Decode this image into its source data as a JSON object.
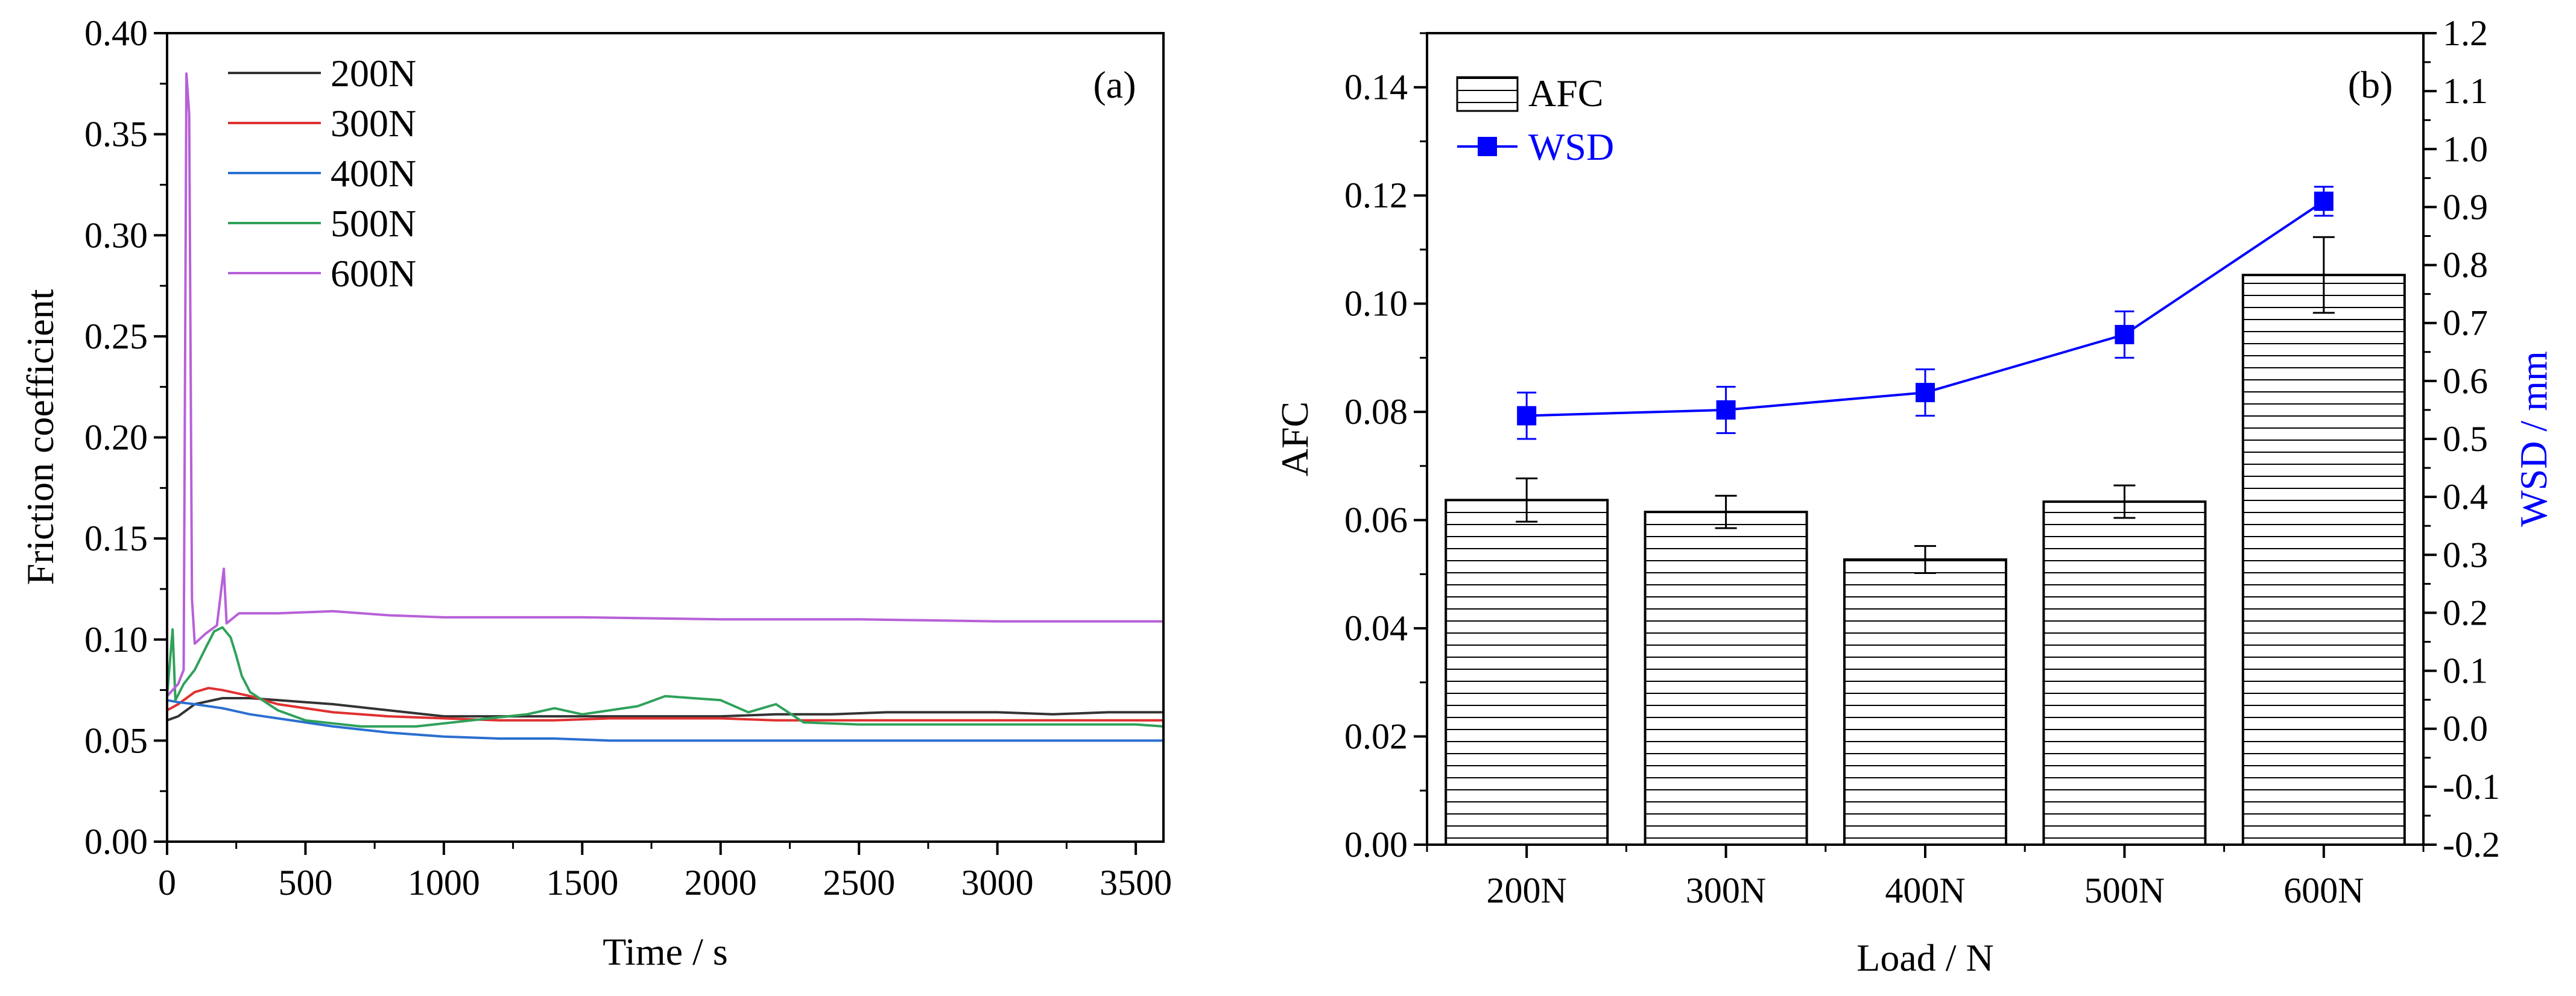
{
  "chart_data": [
    {
      "panel": "(a)",
      "type": "line",
      "xlabel": "Time / s",
      "ylabel": "Friction coefficient",
      "xlim": [
        0,
        3600
      ],
      "ylim": [
        0,
        0.4
      ],
      "xticks": [
        0,
        500,
        1000,
        1500,
        2000,
        2500,
        3000,
        3500
      ],
      "xtick_labels": [
        "0",
        "500",
        "1000",
        "1500",
        "2000",
        "2500",
        "3000",
        "3500"
      ],
      "yticks": [
        0,
        0.05,
        0.1,
        0.15,
        0.2,
        0.25,
        0.3,
        0.35,
        0.4
      ],
      "ytick_labels": [
        "0.00",
        "0.05",
        "0.10",
        "0.15",
        "0.20",
        "0.25",
        "0.30",
        "0.35",
        "0.40"
      ],
      "legend_position": "top-left",
      "series": [
        {
          "name": "200N",
          "color": "#333333",
          "points": [
            [
              0,
              0.06
            ],
            [
              40,
              0.062
            ],
            [
              100,
              0.068
            ],
            [
              200,
              0.071
            ],
            [
              300,
              0.071
            ],
            [
              400,
              0.07
            ],
            [
              600,
              0.068
            ],
            [
              800,
              0.065
            ],
            [
              1000,
              0.062
            ],
            [
              1200,
              0.062
            ],
            [
              1400,
              0.062
            ],
            [
              1600,
              0.062
            ],
            [
              1800,
              0.062
            ],
            [
              2000,
              0.062
            ],
            [
              2200,
              0.063
            ],
            [
              2400,
              0.063
            ],
            [
              2600,
              0.064
            ],
            [
              2800,
              0.064
            ],
            [
              3000,
              0.064
            ],
            [
              3200,
              0.063
            ],
            [
              3400,
              0.064
            ],
            [
              3600,
              0.064
            ]
          ]
        },
        {
          "name": "300N",
          "color": "#e03030",
          "points": [
            [
              0,
              0.065
            ],
            [
              40,
              0.068
            ],
            [
              100,
              0.074
            ],
            [
              150,
              0.076
            ],
            [
              200,
              0.075
            ],
            [
              300,
              0.072
            ],
            [
              400,
              0.068
            ],
            [
              600,
              0.064
            ],
            [
              800,
              0.062
            ],
            [
              1000,
              0.061
            ],
            [
              1200,
              0.06
            ],
            [
              1400,
              0.06
            ],
            [
              1600,
              0.061
            ],
            [
              1800,
              0.061
            ],
            [
              2000,
              0.061
            ],
            [
              2200,
              0.06
            ],
            [
              2400,
              0.06
            ],
            [
              2600,
              0.06
            ],
            [
              2800,
              0.06
            ],
            [
              3000,
              0.06
            ],
            [
              3200,
              0.06
            ],
            [
              3400,
              0.06
            ],
            [
              3600,
              0.06
            ]
          ]
        },
        {
          "name": "400N",
          "color": "#2a6fd0",
          "points": [
            [
              0,
              0.07
            ],
            [
              40,
              0.069
            ],
            [
              100,
              0.068
            ],
            [
              200,
              0.066
            ],
            [
              300,
              0.063
            ],
            [
              400,
              0.061
            ],
            [
              600,
              0.057
            ],
            [
              800,
              0.054
            ],
            [
              1000,
              0.052
            ],
            [
              1200,
              0.051
            ],
            [
              1400,
              0.051
            ],
            [
              1600,
              0.05
            ],
            [
              1800,
              0.05
            ],
            [
              2000,
              0.05
            ],
            [
              2200,
              0.05
            ],
            [
              2400,
              0.05
            ],
            [
              2600,
              0.05
            ],
            [
              2800,
              0.05
            ],
            [
              3000,
              0.05
            ],
            [
              3200,
              0.05
            ],
            [
              3400,
              0.05
            ],
            [
              3600,
              0.05
            ]
          ]
        },
        {
          "name": "500N",
          "color": "#2fa15a",
          "points": [
            [
              0,
              0.072
            ],
            [
              20,
              0.105
            ],
            [
              30,
              0.07
            ],
            [
              60,
              0.078
            ],
            [
              100,
              0.085
            ],
            [
              140,
              0.096
            ],
            [
              170,
              0.104
            ],
            [
              200,
              0.106
            ],
            [
              230,
              0.101
            ],
            [
              250,
              0.092
            ],
            [
              270,
              0.082
            ],
            [
              300,
              0.074
            ],
            [
              400,
              0.065
            ],
            [
              500,
              0.06
            ],
            [
              700,
              0.057
            ],
            [
              900,
              0.057
            ],
            [
              1100,
              0.06
            ],
            [
              1300,
              0.063
            ],
            [
              1400,
              0.066
            ],
            [
              1500,
              0.063
            ],
            [
              1600,
              0.065
            ],
            [
              1700,
              0.067
            ],
            [
              1800,
              0.072
            ],
            [
              1900,
              0.071
            ],
            [
              2000,
              0.07
            ],
            [
              2100,
              0.064
            ],
            [
              2200,
              0.068
            ],
            [
              2300,
              0.059
            ],
            [
              2500,
              0.058
            ],
            [
              2700,
              0.058
            ],
            [
              2900,
              0.058
            ],
            [
              3100,
              0.058
            ],
            [
              3300,
              0.058
            ],
            [
              3500,
              0.058
            ],
            [
              3600,
              0.057
            ]
          ]
        },
        {
          "name": "600N",
          "color": "#b860d8",
          "points": [
            [
              0,
              0.072
            ],
            [
              40,
              0.078
            ],
            [
              60,
              0.085
            ],
            [
              70,
              0.38
            ],
            [
              80,
              0.36
            ],
            [
              90,
              0.12
            ],
            [
              100,
              0.098
            ],
            [
              140,
              0.103
            ],
            [
              180,
              0.107
            ],
            [
              205,
              0.135
            ],
            [
              215,
              0.108
            ],
            [
              260,
              0.113
            ],
            [
              400,
              0.113
            ],
            [
              600,
              0.114
            ],
            [
              800,
              0.112
            ],
            [
              1000,
              0.111
            ],
            [
              1500,
              0.111
            ],
            [
              2000,
              0.11
            ],
            [
              2500,
              0.11
            ],
            [
              3000,
              0.109
            ],
            [
              3600,
              0.109
            ]
          ]
        }
      ]
    },
    {
      "panel": "(b)",
      "type": "bar",
      "categories": [
        "200N",
        "300N",
        "400N",
        "500N",
        "600N"
      ],
      "xlabel": "Load / N",
      "ylabel": "AFC",
      "ylim": [
        0,
        0.15
      ],
      "yticks": [
        0,
        0.02,
        0.04,
        0.06,
        0.08,
        0.1,
        0.12,
        0.14
      ],
      "ytick_labels": [
        "0.00",
        "0.02",
        "0.04",
        "0.06",
        "0.08",
        "0.10",
        "0.12",
        "0.14"
      ],
      "y2label": "WSD / mm",
      "y2lim": [
        -0.2,
        1.2
      ],
      "y2ticks": [
        -0.2,
        -0.1,
        0,
        0.1,
        0.2,
        0.3,
        0.4,
        0.5,
        0.6,
        0.7,
        0.8,
        0.9,
        1.0,
        1.1,
        1.2
      ],
      "y2tick_labels": [
        "-0.2",
        "-0.1",
        "0.0",
        "0.1",
        "0.2",
        "0.3",
        "0.4",
        "0.5",
        "0.6",
        "0.7",
        "0.8",
        "0.9",
        "1.0",
        "1.1",
        "1.2"
      ],
      "legend_position": "top-left",
      "series": [
        {
          "name": "AFC",
          "axis": "left",
          "kind": "bar",
          "color": "#000000",
          "values": [
            0.0637,
            0.0615,
            0.0527,
            0.0634,
            0.1053
          ],
          "errors": [
            0.004,
            0.003,
            0.0025,
            0.003,
            0.007
          ]
        },
        {
          "name": "WSD",
          "axis": "right",
          "kind": "line-marker",
          "color": "#0000ff",
          "values": [
            0.54,
            0.55,
            0.58,
            0.68,
            0.91
          ],
          "errors": [
            0.04,
            0.04,
            0.04,
            0.04,
            0.025
          ]
        }
      ]
    }
  ]
}
